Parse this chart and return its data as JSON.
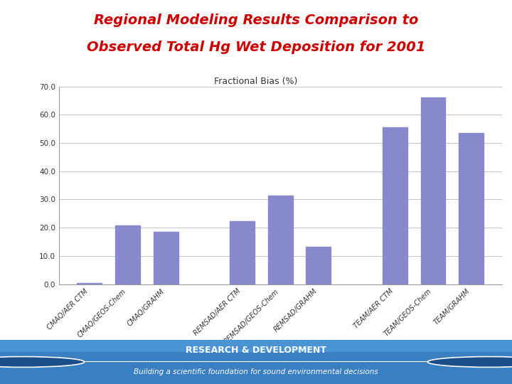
{
  "title_line1": "Regional Modeling Results Comparison to",
  "title_line2": "Observed Total Hg Wet Deposition for 2001",
  "title_color": "#cc0000",
  "chart_title": "Fractional Bias (%)",
  "categories": [
    "CMAQ/AER CTM",
    "CMAQ/GEOS-Chem",
    "CMAQ/GRAHM",
    "",
    "REMSAD/AER CTM",
    "REMSAD/GEOS-Chem",
    "REMSAD/GRAHM",
    "",
    "TEAM/AER CTM",
    "TEAM/GEOS-Chem",
    "TEAM/GRAHM"
  ],
  "values": [
    0.3,
    20.7,
    18.5,
    0,
    22.2,
    31.3,
    13.3,
    0,
    55.5,
    66.0,
    53.5
  ],
  "bar_color": "#8888cc",
  "bar_width": 0.65,
  "ylim": [
    0,
    70.0
  ],
  "yticks": [
    0.0,
    10.0,
    20.0,
    30.0,
    40.0,
    50.0,
    60.0,
    70.0
  ],
  "background_color": "#ffffff",
  "grid_color": "#bbbbbb",
  "footer_text": "RESEARCH & DEVELOPMENT",
  "footer_subtext": "Building a scientific foundation for sound environmental decisions",
  "footer_bg_color": "#4a90c8",
  "footer_text_color": "#ffffff"
}
